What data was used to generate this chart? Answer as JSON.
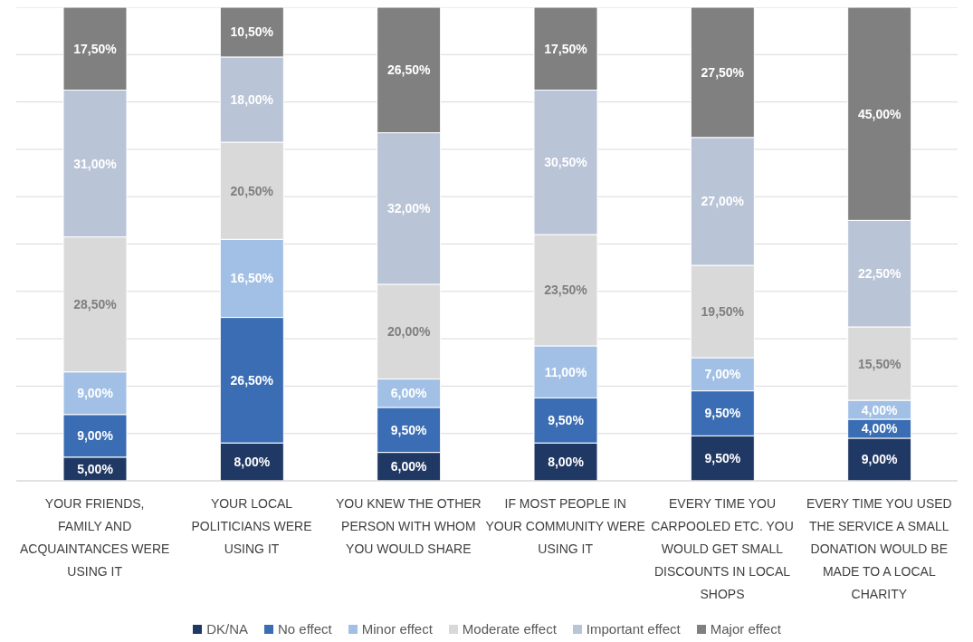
{
  "chart_data": {
    "type": "bar",
    "stacked": true,
    "categories": [
      "YOUR FRIENDS, FAMILY AND ACQUAINTANCES WERE USING IT",
      "YOUR LOCAL POLITICIANS WERE USING IT",
      "YOU KNEW THE OTHER PERSON WITH WHOM YOU WOULD SHARE",
      "IF MOST PEOPLE IN YOUR COMMUNITY WERE USING IT",
      "EVERY TIME YOU CARPOOLED ETC. YOU WOULD GET SMALL DISCOUNTS IN LOCAL SHOPS",
      "EVERY TIME YOU USED THE SERVICE A SMALL DONATION WOULD BE MADE TO A LOCAL CHARITY"
    ],
    "series": [
      {
        "name": "DK/NA",
        "color": "#203864",
        "values": [
          5,
          8,
          6,
          8,
          9.5,
          9
        ],
        "value_labels": [
          "5,00%",
          "8,00%",
          "6,00%",
          "8,00%",
          "9,50%",
          "9,00%"
        ]
      },
      {
        "name": "No effect",
        "color": "#3a6db3",
        "values": [
          9,
          26.5,
          9.5,
          9.5,
          9.5,
          4
        ],
        "value_labels": [
          "9,00%",
          "26,50%",
          "9,50%",
          "9,50%",
          "9,50%",
          "4,00%"
        ]
      },
      {
        "name": "Minor effect",
        "color": "#a2c0e6",
        "values": [
          9,
          16.5,
          6,
          11,
          7,
          4
        ],
        "value_labels": [
          "9,00%",
          "16,50%",
          "6,00%",
          "11,00%",
          "7,00%",
          "4,00%"
        ]
      },
      {
        "name": "Moderate effect",
        "color": "#d9d9d9",
        "values": [
          28.5,
          20.5,
          20,
          23.5,
          19.5,
          15.5
        ],
        "value_labels": [
          "28,50%",
          "20,50%",
          "20,00%",
          "23,50%",
          "19,50%",
          "15,50%"
        ]
      },
      {
        "name": "Important effect",
        "color": "#b9c4d7",
        "values": [
          31,
          18,
          32,
          30.5,
          27,
          22.5
        ],
        "value_labels": [
          "31,00%",
          "18,00%",
          "32,00%",
          "30,50%",
          "27,00%",
          "22,50%"
        ]
      },
      {
        "name": "Major effect",
        "color": "#808080",
        "values": [
          17.5,
          10.5,
          26.5,
          17.5,
          27.5,
          45
        ],
        "value_labels": [
          "17,50%",
          "10,50%",
          "26,50%",
          "17,50%",
          "27,50%",
          "45,00%"
        ]
      }
    ],
    "ylim": [
      0,
      100
    ],
    "yticks": [
      {
        "value": 0,
        "label": null
      },
      {
        "value": 10,
        "label": null
      },
      {
        "value": 20,
        "label": null
      },
      {
        "value": 30,
        "label": null
      },
      {
        "value": 40,
        "label": null
      },
      {
        "value": 50,
        "label": null
      },
      {
        "value": 60,
        "label": null
      },
      {
        "value": 70,
        "label": null
      },
      {
        "value": 80,
        "label": null
      },
      {
        "value": 90,
        "label": null
      },
      {
        "value": 100,
        "label": null
      }
    ],
    "tick_labels": "x",
    "grid": "y",
    "legend": "bottom"
  }
}
